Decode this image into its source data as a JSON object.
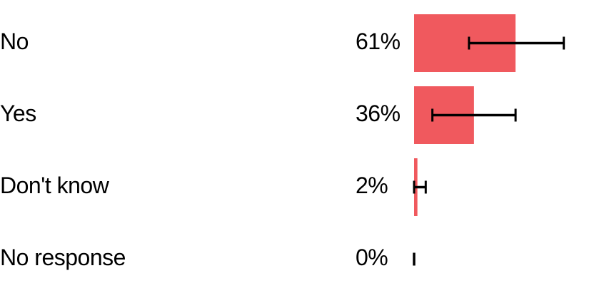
{
  "chart_data": {
    "type": "bar",
    "orientation": "horizontal",
    "title": "",
    "xlabel": "",
    "ylabel": "",
    "categories": [
      "No",
      "Yes",
      "Don't know",
      "No response"
    ],
    "values": [
      61,
      36,
      2,
      0
    ],
    "value_labels": [
      "61%",
      "36%",
      "2%",
      "0%"
    ],
    "error_low": [
      33,
      11,
      0,
      0
    ],
    "error_high": [
      90,
      61,
      7,
      0
    ],
    "xlim": [
      0,
      100
    ],
    "unit": "%",
    "bar_color": "#f0595e",
    "error_color": "#000000",
    "grid": false,
    "legend": "none"
  }
}
